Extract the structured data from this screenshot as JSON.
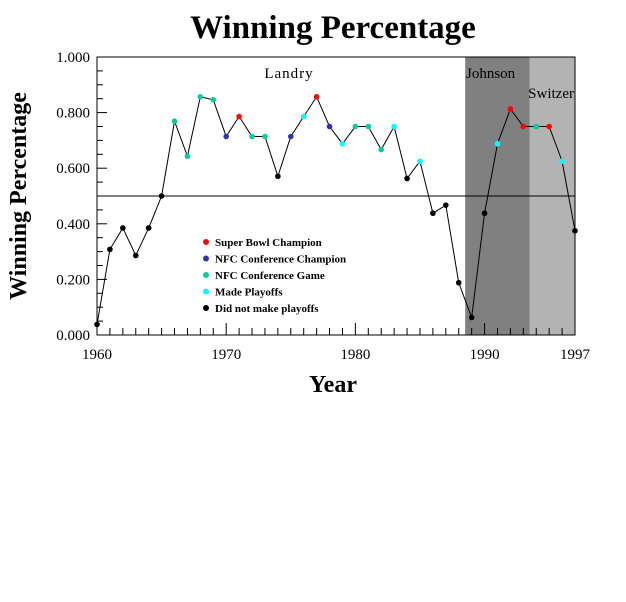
{
  "chart_data": {
    "type": "line",
    "title": "Winning Percentage",
    "xlabel": "Year",
    "ylabel": "Winning Percentage",
    "xlim": [
      1960,
      1997
    ],
    "ylim": [
      0,
      1
    ],
    "x_ticks": [
      {
        "value": 1960,
        "label": "1960"
      },
      {
        "value": 1970,
        "label": "1970"
      },
      {
        "value": 1980,
        "label": "1980"
      },
      {
        "value": 1990,
        "label": "1990"
      },
      {
        "value": 1997,
        "label": "1997"
      }
    ],
    "y_ticks": [
      {
        "value": 0,
        "label": "0.000"
      },
      {
        "value": 0.2,
        "label": "0.200"
      },
      {
        "value": 0.4,
        "label": "0.400"
      },
      {
        "value": 0.6,
        "label": "0.600"
      },
      {
        "value": 0.8,
        "label": "0.800"
      },
      {
        "value": 1,
        "label": "1.000"
      }
    ],
    "reference_line": 0.5,
    "grid": false,
    "legend_position": "lower-left inside plot",
    "categories": [
      {
        "key": "sb",
        "label": "Super Bowl Champion",
        "color": "#ff0000"
      },
      {
        "key": "nfcc",
        "label": "NFC Conference Champion",
        "color": "#3333aa"
      },
      {
        "key": "nfcg",
        "label": "NFC Conference Game",
        "color": "#00cc99"
      },
      {
        "key": "po",
        "label": "Made Playoffs",
        "color": "#00ffff"
      },
      {
        "key": "none",
        "label": "Did not make playoffs",
        "color": "#000000"
      }
    ],
    "eras": [
      {
        "name": "Landry",
        "start": 1960,
        "end": 1988.5,
        "color": "#ffffff"
      },
      {
        "name": "Johnson",
        "start": 1988.5,
        "end": 1993.5,
        "color": "#808080"
      },
      {
        "name": "Switzer",
        "start": 1993.5,
        "end": 1997,
        "color": "#b3b3b3"
      }
    ],
    "points": [
      {
        "x": 1960,
        "y": 0.038,
        "cat": "none"
      },
      {
        "x": 1961,
        "y": 0.308,
        "cat": "none"
      },
      {
        "x": 1962,
        "y": 0.385,
        "cat": "none"
      },
      {
        "x": 1963,
        "y": 0.286,
        "cat": "none"
      },
      {
        "x": 1964,
        "y": 0.385,
        "cat": "none"
      },
      {
        "x": 1965,
        "y": 0.5,
        "cat": "none"
      },
      {
        "x": 1966,
        "y": 0.769,
        "cat": "nfcg"
      },
      {
        "x": 1967,
        "y": 0.643,
        "cat": "nfcg"
      },
      {
        "x": 1968,
        "y": 0.857,
        "cat": "nfcg"
      },
      {
        "x": 1969,
        "y": 0.846,
        "cat": "nfcg"
      },
      {
        "x": 1970,
        "y": 0.714,
        "cat": "nfcc"
      },
      {
        "x": 1971,
        "y": 0.786,
        "cat": "sb"
      },
      {
        "x": 1972,
        "y": 0.714,
        "cat": "nfcg"
      },
      {
        "x": 1973,
        "y": 0.714,
        "cat": "nfcg"
      },
      {
        "x": 1974,
        "y": 0.571,
        "cat": "none"
      },
      {
        "x": 1975,
        "y": 0.714,
        "cat": "nfcc"
      },
      {
        "x": 1976,
        "y": 0.786,
        "cat": "po"
      },
      {
        "x": 1977,
        "y": 0.857,
        "cat": "sb"
      },
      {
        "x": 1978,
        "y": 0.75,
        "cat": "nfcc"
      },
      {
        "x": 1979,
        "y": 0.688,
        "cat": "po"
      },
      {
        "x": 1980,
        "y": 0.75,
        "cat": "nfcg"
      },
      {
        "x": 1981,
        "y": 0.75,
        "cat": "nfcg"
      },
      {
        "x": 1982,
        "y": 0.667,
        "cat": "nfcg"
      },
      {
        "x": 1983,
        "y": 0.75,
        "cat": "po"
      },
      {
        "x": 1984,
        "y": 0.563,
        "cat": "none"
      },
      {
        "x": 1985,
        "y": 0.625,
        "cat": "po"
      },
      {
        "x": 1986,
        "y": 0.438,
        "cat": "none"
      },
      {
        "x": 1987,
        "y": 0.467,
        "cat": "none"
      },
      {
        "x": 1988,
        "y": 0.188,
        "cat": "none"
      },
      {
        "x": 1989,
        "y": 0.063,
        "cat": "none"
      },
      {
        "x": 1990,
        "y": 0.438,
        "cat": "none"
      },
      {
        "x": 1991,
        "y": 0.688,
        "cat": "po"
      },
      {
        "x": 1992,
        "y": 0.813,
        "cat": "sb"
      },
      {
        "x": 1993,
        "y": 0.75,
        "cat": "sb"
      },
      {
        "x": 1994,
        "y": 0.75,
        "cat": "nfcg"
      },
      {
        "x": 1995,
        "y": 0.75,
        "cat": "sb"
      },
      {
        "x": 1996,
        "y": 0.625,
        "cat": "po"
      },
      {
        "x": 1997,
        "y": 0.375,
        "cat": "none"
      }
    ]
  }
}
